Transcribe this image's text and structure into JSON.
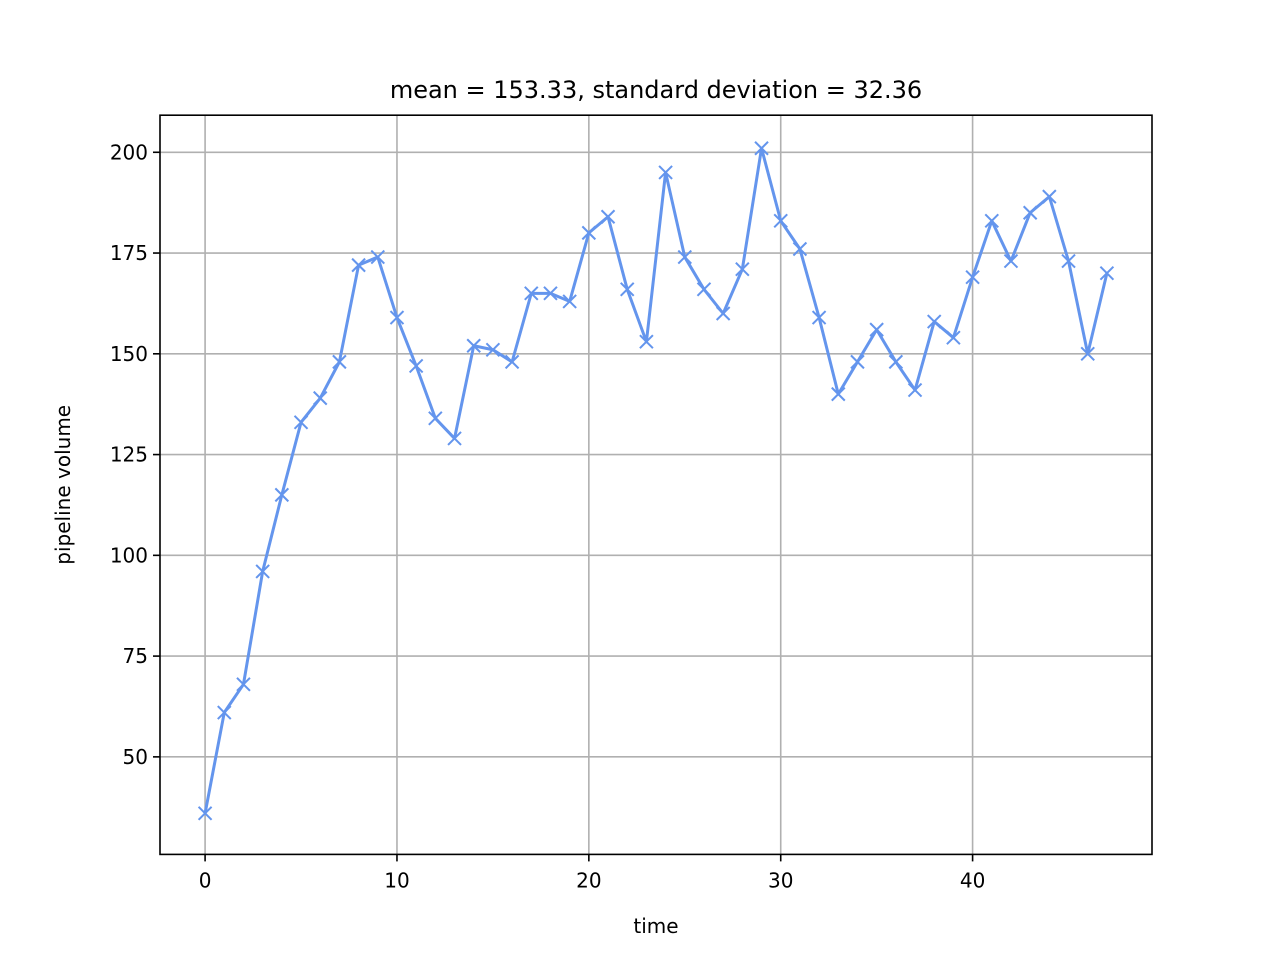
{
  "chart_data": {
    "type": "line",
    "title": "mean = 153.33, standard deviation = 32.36",
    "xlabel": "time",
    "ylabel": "pipeline volume",
    "xlim": [
      -2.35,
      49.35
    ],
    "ylim": [
      25.8,
      209.2
    ],
    "xticks": [
      0,
      10,
      20,
      30,
      40
    ],
    "yticks": [
      50,
      75,
      100,
      125,
      150,
      175,
      200
    ],
    "grid": true,
    "marker": "x",
    "color": "#6495ed",
    "series": [
      {
        "x": [
          0,
          1,
          2,
          3,
          4,
          5,
          6,
          7,
          8,
          9,
          10,
          11,
          12,
          13,
          14,
          15,
          16,
          17,
          18,
          19,
          20,
          21,
          22,
          23,
          24,
          25,
          26,
          27,
          28,
          29,
          30,
          31,
          32,
          33,
          34,
          35,
          36,
          37,
          38,
          39,
          40,
          41,
          42,
          43,
          44,
          45,
          46,
          47
        ],
        "values": [
          36,
          61,
          68,
          96,
          115,
          133,
          139,
          148,
          172,
          174,
          159,
          147,
          134,
          129,
          152,
          151,
          148,
          165,
          165,
          163,
          180,
          184,
          166,
          153,
          195,
          174,
          166,
          160,
          171,
          201,
          183,
          176,
          159,
          140,
          148,
          156,
          148,
          141,
          158,
          154,
          169,
          183,
          173,
          185,
          189,
          173,
          150,
          170
        ]
      }
    ]
  }
}
